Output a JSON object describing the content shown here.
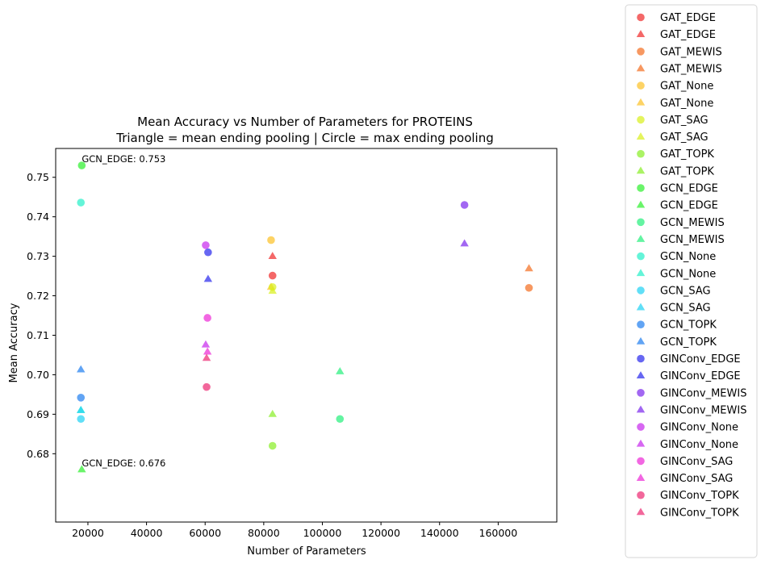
{
  "chart_data": {
    "type": "scatter",
    "title_line1": "Mean Accuracy vs Number of Parameters for PROTEINS",
    "title_line2": "Triangle = mean ending pooling | Circle = max ending pooling",
    "xlabel": "Number of Parameters",
    "ylabel": "Mean Accuracy",
    "xlim": [
      9000,
      180000
    ],
    "ylim": [
      0.6627,
      0.7573
    ],
    "xticks": [
      20000,
      40000,
      60000,
      80000,
      100000,
      120000,
      140000,
      160000
    ],
    "xtick_labels": [
      "20000",
      "40000",
      "60000",
      "80000",
      "100000",
      "120000",
      "140000",
      "160000"
    ],
    "yticks": [
      0.68,
      0.69,
      0.7,
      0.71,
      0.72,
      0.73,
      0.74,
      0.75
    ],
    "ytick_labels": [
      "0.68",
      "0.69",
      "0.70",
      "0.71",
      "0.72",
      "0.73",
      "0.74",
      "0.75"
    ],
    "legend_position": "outside-right",
    "series": [
      {
        "name": "GAT_EDGE",
        "marker": "circle",
        "color": "#f02828",
        "points": [
          [
            83000,
            0.7251
          ]
        ]
      },
      {
        "name": "GAT_EDGE",
        "marker": "triangle",
        "color": "#f02828",
        "points": [
          [
            83000,
            0.73
          ]
        ]
      },
      {
        "name": "GAT_MEWIS",
        "marker": "circle",
        "color": "#f46c1e",
        "points": [
          [
            170500,
            0.722
          ]
        ]
      },
      {
        "name": "GAT_MEWIS",
        "marker": "triangle",
        "color": "#f46c1e",
        "points": [
          [
            170500,
            0.7269
          ]
        ]
      },
      {
        "name": "GAT_None",
        "marker": "circle",
        "color": "#fcc023",
        "points": [
          [
            82500,
            0.7341
          ]
        ]
      },
      {
        "name": "GAT_None",
        "marker": "triangle",
        "color": "#fcc023",
        "points": [
          [
            82500,
            0.7222
          ]
        ]
      },
      {
        "name": "GAT_SAG",
        "marker": "circle",
        "color": "#d8f01a",
        "points": [
          [
            83000,
            0.7222
          ]
        ]
      },
      {
        "name": "GAT_SAG",
        "marker": "triangle",
        "color": "#d8f01a",
        "points": [
          [
            83000,
            0.7212
          ]
        ]
      },
      {
        "name": "GAT_TOPK",
        "marker": "circle",
        "color": "#88ee24",
        "points": [
          [
            83000,
            0.682
          ]
        ]
      },
      {
        "name": "GAT_TOPK",
        "marker": "triangle",
        "color": "#88ee24",
        "points": [
          [
            83000,
            0.69
          ]
        ]
      },
      {
        "name": "GCN_EDGE",
        "marker": "circle",
        "color": "#2bf02b",
        "points": [
          [
            17900,
            0.753
          ]
        ]
      },
      {
        "name": "GCN_EDGE",
        "marker": "triangle",
        "color": "#2bf02b",
        "points": [
          [
            17900,
            0.676
          ]
        ]
      },
      {
        "name": "GCN_MEWIS",
        "marker": "circle",
        "color": "#22f07a",
        "points": [
          [
            106000,
            0.6888
          ]
        ]
      },
      {
        "name": "GCN_MEWIS",
        "marker": "triangle",
        "color": "#22f07a",
        "points": [
          [
            106000,
            0.7008
          ]
        ]
      },
      {
        "name": "GCN_None",
        "marker": "circle",
        "color": "#22f0c8",
        "points": [
          [
            17600,
            0.7436
          ]
        ]
      },
      {
        "name": "GCN_None",
        "marker": "triangle",
        "color": "#22f0c8",
        "points": [
          [
            17600,
            0.691
          ]
        ]
      },
      {
        "name": "GCN_SAG",
        "marker": "circle",
        "color": "#1ed2f4",
        "points": [
          [
            17600,
            0.6888
          ]
        ]
      },
      {
        "name": "GCN_SAG",
        "marker": "triangle",
        "color": "#1ed2f4",
        "points": [
          [
            17600,
            0.691
          ]
        ]
      },
      {
        "name": "GCN_TOPK",
        "marker": "circle",
        "color": "#1e7ef0",
        "points": [
          [
            17600,
            0.6942
          ]
        ]
      },
      {
        "name": "GCN_TOPK",
        "marker": "triangle",
        "color": "#1e7ef0",
        "points": [
          [
            17600,
            0.7013
          ]
        ]
      },
      {
        "name": "GINConv_EDGE",
        "marker": "circle",
        "color": "#2626ec",
        "points": [
          [
            61000,
            0.731
          ]
        ]
      },
      {
        "name": "GINConv_EDGE",
        "marker": "triangle",
        "color": "#2626ec",
        "points": [
          [
            61000,
            0.7242
          ]
        ]
      },
      {
        "name": "GINConv_MEWIS",
        "marker": "circle",
        "color": "#7a26ec",
        "points": [
          [
            148500,
            0.743
          ]
        ]
      },
      {
        "name": "GINConv_MEWIS",
        "marker": "triangle",
        "color": "#7a26ec",
        "points": [
          [
            148500,
            0.7332
          ]
        ]
      },
      {
        "name": "GINConv_None",
        "marker": "circle",
        "color": "#c626ec",
        "points": [
          [
            60200,
            0.7328
          ]
        ]
      },
      {
        "name": "GINConv_None",
        "marker": "triangle",
        "color": "#c626ec",
        "points": [
          [
            60200,
            0.7076
          ]
        ]
      },
      {
        "name": "GINConv_SAG",
        "marker": "circle",
        "color": "#ec26d6",
        "points": [
          [
            60800,
            0.7144
          ]
        ]
      },
      {
        "name": "GINConv_SAG",
        "marker": "triangle",
        "color": "#ec26d6",
        "points": [
          [
            60800,
            0.7058
          ]
        ]
      },
      {
        "name": "GINConv_TOPK",
        "marker": "circle",
        "color": "#ec2670",
        "points": [
          [
            60500,
            0.6969
          ]
        ]
      },
      {
        "name": "GINConv_TOPK",
        "marker": "triangle",
        "color": "#ec2670",
        "points": [
          [
            60500,
            0.7042
          ]
        ]
      }
    ],
    "annotations": [
      {
        "text": "GCN_EDGE: 0.753",
        "x": 17900,
        "y": 0.753
      },
      {
        "text": "GCN_EDGE: 0.676",
        "x": 17900,
        "y": 0.676
      }
    ]
  }
}
